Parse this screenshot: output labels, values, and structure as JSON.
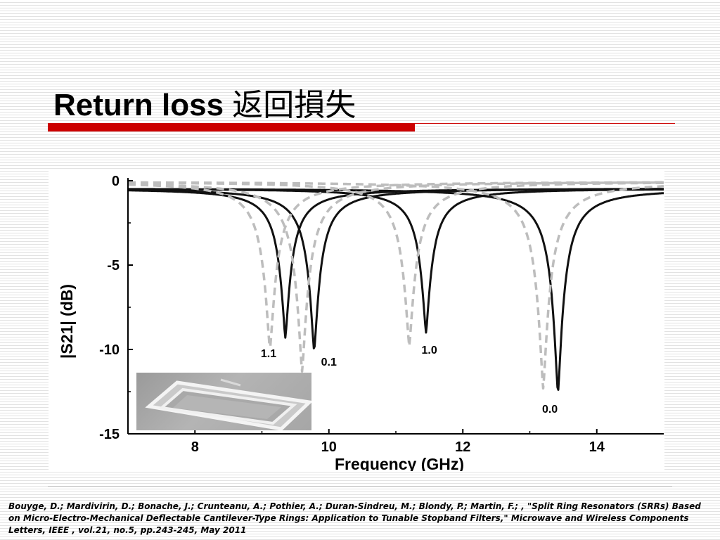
{
  "slide": {
    "title_en": "Return loss",
    "title_cjk": "返回損失",
    "citation": "Bouyge, D.; Mardivirin, D.; Bonache, J.; Crunteanu, A.; Pothier, A.; Duran-Sindreu, M.; Blondy, P.; Martin, F.; , \"Split Ring Resonators (SRRs) Based on Micro-Electro-Mechanical Deflectable Cantilever-Type Rings: Application to Tunable Stopband Filters,\" Microwave and Wireless Components Letters, IEEE , vol.21, no.5, pp.243-245, May 2011"
  },
  "colors": {
    "accent_red": "#cc0000",
    "solid_curve": "#111111",
    "dashed_curve": "#bdbdbd"
  },
  "inset": {
    "icon": "srr-micrograph-icon"
  },
  "chart_data": {
    "type": "line",
    "title": "",
    "xlabel": "Frequency (GHz)",
    "ylabel": "|S21| (dB)",
    "xlim": [
      7,
      15
    ],
    "ylim": [
      -15,
      0
    ],
    "x_ticks": [
      8,
      10,
      12,
      14
    ],
    "y_ticks": [
      0,
      -5,
      -10,
      -15
    ],
    "grid": false,
    "series": [
      {
        "style": "solid",
        "center": 9.35,
        "min": -9.3
      },
      {
        "style": "solid",
        "center": 9.78,
        "min": -10.1
      },
      {
        "style": "solid",
        "center": 11.45,
        "min": -9.0
      },
      {
        "style": "solid",
        "center": 13.42,
        "min": -12.6
      },
      {
        "style": "dashed",
        "center": 9.12,
        "min": -10.0
      },
      {
        "style": "dashed",
        "center": 9.6,
        "min": -11.3
      },
      {
        "style": "dashed",
        "center": 11.2,
        "min": -9.8
      },
      {
        "style": "dashed",
        "center": 13.2,
        "min": -12.3
      }
    ],
    "annotations": [
      {
        "text": "1.1",
        "x": 9.1,
        "y": -10.2
      },
      {
        "text": "0.1",
        "x": 10.0,
        "y": -10.7
      },
      {
        "text": "1.0",
        "x": 11.5,
        "y": -10.0
      },
      {
        "text": "0.0",
        "x": 13.3,
        "y": -13.5
      }
    ]
  }
}
